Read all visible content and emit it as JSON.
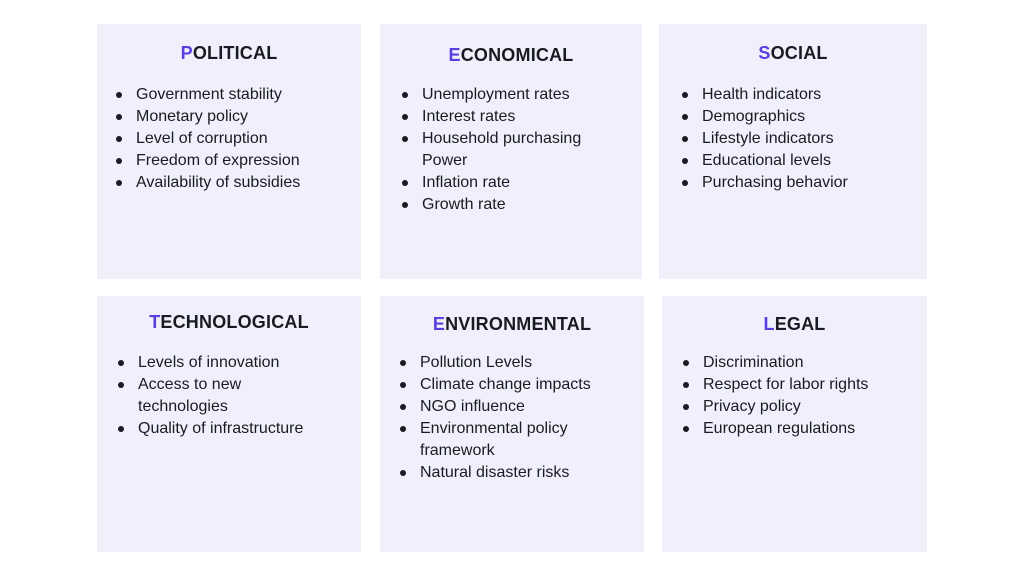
{
  "colors": {
    "card_background": "#eff0fb",
    "accent": "#5b3ee0",
    "text": "#1a1a22"
  },
  "cards": [
    {
      "initial": "P",
      "rest": "OLITICAL",
      "items": [
        "Government stability",
        "Monetary policy",
        "Level of corruption",
        "Freedom of expression",
        "Availability of subsidies"
      ]
    },
    {
      "initial": "E",
      "rest": "CONOMICAL",
      "items": [
        "Unemployment rates",
        "Interest rates",
        "Household purchasing Power",
        "Inflation rate",
        "Growth rate"
      ]
    },
    {
      "initial": "S",
      "rest": "OCIAL",
      "items": [
        "Health indicators",
        "Demographics",
        "Lifestyle indicators",
        "Educational levels",
        "Purchasing behavior"
      ]
    },
    {
      "initial": "T",
      "rest": "ECHNOLOGICAL",
      "items": [
        "Levels of innovation",
        "Access to new technologies",
        "Quality of infrastructure"
      ]
    },
    {
      "initial": "E",
      "rest": "NVIRONMENTAL",
      "items": [
        "Pollution Levels",
        "Climate change impacts",
        "NGO influence",
        "Environmental policy framework",
        "Natural disaster risks"
      ]
    },
    {
      "initial": "L",
      "rest": "EGAL",
      "items": [
        "Discrimination",
        "Respect for labor rights",
        "Privacy policy",
        "European regulations"
      ]
    }
  ]
}
